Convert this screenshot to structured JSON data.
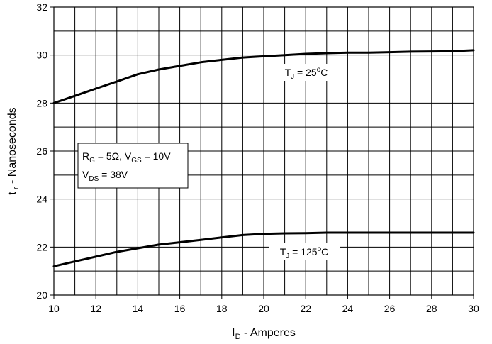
{
  "chart_data": {
    "type": "line",
    "xlabel": {
      "main": "I",
      "sub": "D",
      "rest": " - Amperes"
    },
    "ylabel": {
      "main": "t",
      "sub": " r",
      "rest": " - Nanoseconds"
    },
    "xlim": [
      10,
      30
    ],
    "ylim": [
      20,
      32
    ],
    "xticks": [
      10,
      12,
      14,
      16,
      18,
      20,
      22,
      24,
      26,
      28,
      30
    ],
    "yticks": [
      20,
      22,
      24,
      26,
      28,
      30,
      32
    ],
    "x_minor_step": 1,
    "y_minor_step": 1,
    "grid": true,
    "line_color": "#000000",
    "series": [
      {
        "label": {
          "pre": "T",
          "sub": "J",
          "post": " = 25",
          "sup": "o",
          "end": "C"
        },
        "x": [
          10,
          11,
          12,
          13,
          14,
          15,
          16,
          17,
          18,
          19,
          20,
          21,
          22,
          23,
          24,
          25,
          26,
          27,
          28,
          29,
          30
        ],
        "y": [
          28.0,
          28.3,
          28.6,
          28.9,
          29.2,
          29.4,
          29.55,
          29.7,
          29.8,
          29.9,
          29.95,
          30.0,
          30.05,
          30.08,
          30.1,
          30.1,
          30.12,
          30.14,
          30.15,
          30.16,
          30.2
        ]
      },
      {
        "label": {
          "pre": "T",
          "sub": "J",
          "post": " = 125",
          "sup": "o",
          "end": "C"
        },
        "x": [
          10,
          11,
          12,
          13,
          14,
          15,
          16,
          17,
          18,
          19,
          20,
          21,
          22,
          23,
          24,
          25,
          26,
          27,
          28,
          29,
          30
        ],
        "y": [
          21.2,
          21.4,
          21.6,
          21.8,
          21.95,
          22.1,
          22.2,
          22.3,
          22.4,
          22.5,
          22.55,
          22.57,
          22.58,
          22.6,
          22.6,
          22.6,
          22.6,
          22.6,
          22.6,
          22.6,
          22.6
        ]
      }
    ],
    "conditions": {
      "line1": [
        {
          "t": "R"
        },
        {
          "t": "G",
          "sub": true
        },
        {
          "t": " = 5Ω, V"
        },
        {
          "t": "GS",
          "sub": true
        },
        {
          "t": " = 10V"
        }
      ],
      "line2": [
        {
          "t": "V"
        },
        {
          "t": "DS",
          "sub": true
        },
        {
          "t": " = 38V"
        }
      ]
    }
  }
}
